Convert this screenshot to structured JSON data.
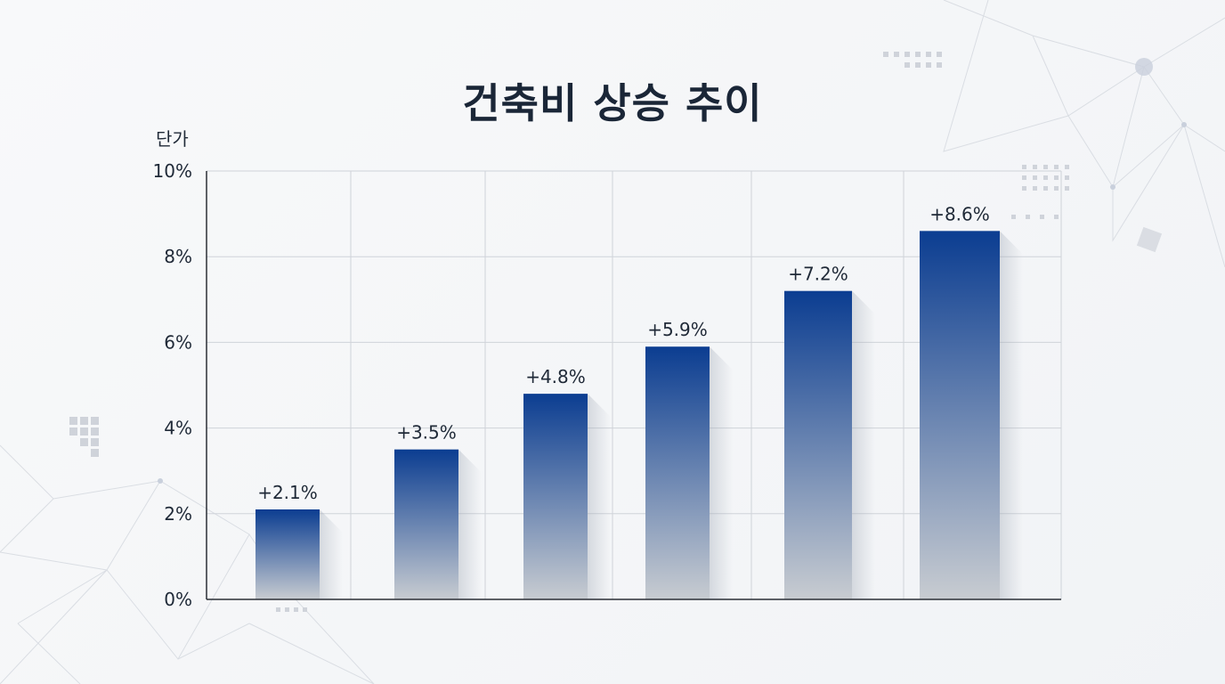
{
  "chart_data": {
    "type": "bar",
    "title": "건축비 상승 추이",
    "ylabel": "단가",
    "xlabel": "",
    "categories": [
      "",
      "",
      "",
      "",
      "",
      ""
    ],
    "values": [
      2.1,
      3.5,
      4.8,
      5.9,
      7.2,
      8.6
    ],
    "data_labels": [
      "+2.1%",
      "+3.5%",
      "+4.8%",
      "+5.9%",
      "+7.2%",
      "+8.6%"
    ],
    "ylim": [
      0,
      10
    ],
    "yticks": [
      "0%",
      "2%",
      "4%",
      "6%",
      "8%",
      "10%"
    ],
    "ytick_values": [
      0,
      2,
      4,
      6,
      8,
      10
    ],
    "grid": true,
    "legend": "none",
    "colors": {
      "bar_top": "#0b3d91",
      "bar_bottom": "#c8ccd1",
      "text": "#1f2937",
      "grid": "#cfd3d9",
      "axis": "#2b2f36"
    }
  }
}
